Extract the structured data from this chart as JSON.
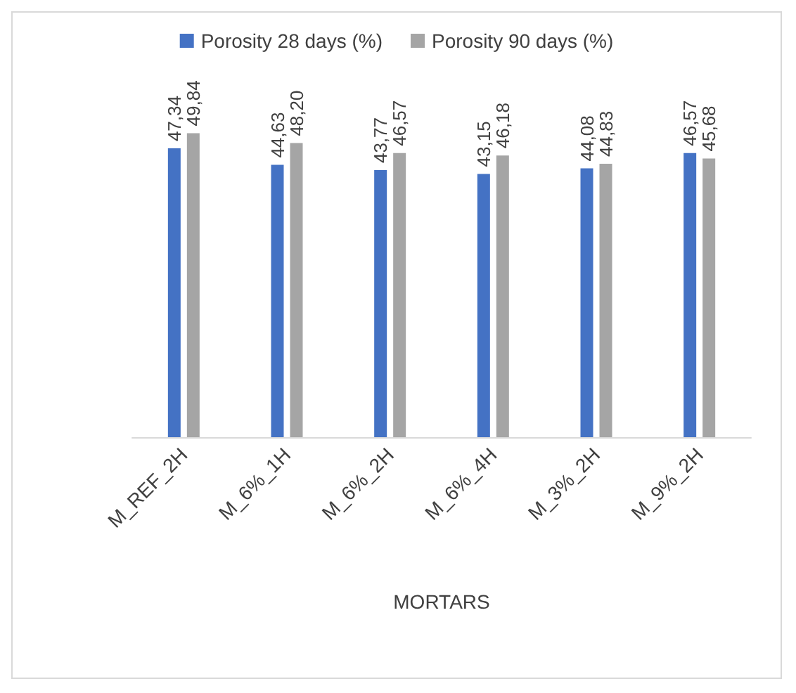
{
  "chart_data": {
    "type": "bar",
    "xlabel": "MORTARS",
    "categories": [
      "M_REF_2H",
      "M_6%_1H",
      "M_6%_2H",
      "M_6%_4H",
      "M_3%_2H",
      "M_9%_2H"
    ],
    "series": [
      {
        "name": "Porosity 28 days (%)",
        "color": "#4472c4",
        "values": [
          47.34,
          44.63,
          43.77,
          43.15,
          44.08,
          46.57
        ],
        "value_labels": [
          "47,34",
          "44,63",
          "43,77",
          "43,15",
          "44,08",
          "46,57"
        ]
      },
      {
        "name": "Porosity 90 days (%)",
        "color": "#a5a5a5",
        "values": [
          49.84,
          48.2,
          46.57,
          46.18,
          44.83,
          45.68
        ],
        "value_labels": [
          "49,84",
          "48,20",
          "46,57",
          "46,18",
          "44,83",
          "45,68"
        ]
      }
    ],
    "grid": false,
    "legend": "top",
    "tick_labels": "x"
  }
}
